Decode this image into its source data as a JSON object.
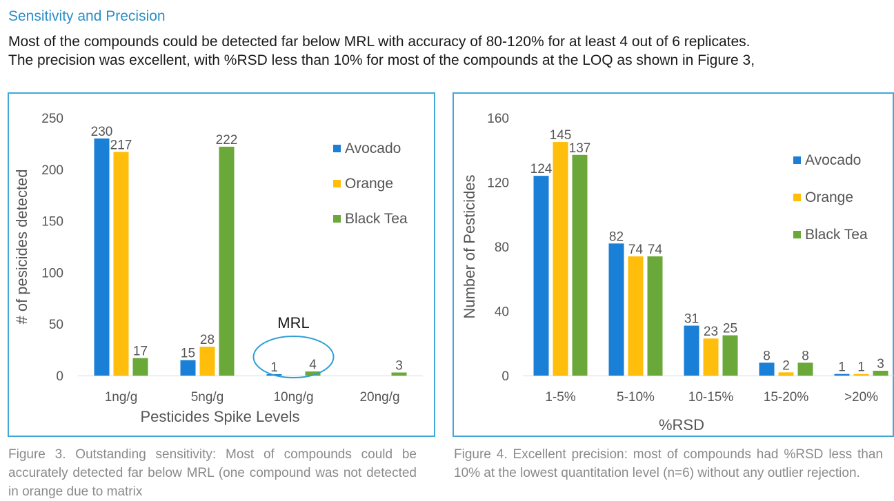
{
  "heading": "Sensitivity and Precision",
  "intro_lines": [
    "Most of the compounds could be detected far below MRL with accuracy of 80-120% for at least 4 out of 6 replicates.",
    "The precision was excellent, with %RSD less than 10% for most of the compounds at the LOQ as shown in Figure 3,"
  ],
  "colors": {
    "Avocado": "#1a7fd6",
    "Orange": "#ffbe0b",
    "Black Tea": "#6aa839",
    "accent": "#2a8fc6"
  },
  "chart_data": [
    {
      "type": "bar",
      "categories": [
        "1ng/g",
        "5ng/g",
        "10ng/g",
        "20ng/g"
      ],
      "series": [
        {
          "name": "Avocado",
          "values": [
            230,
            15,
            1,
            0
          ]
        },
        {
          "name": "Orange",
          "values": [
            217,
            28,
            0,
            0
          ]
        },
        {
          "name": "Black Tea",
          "values": [
            17,
            222,
            4,
            3
          ]
        }
      ],
      "data_labels": [
        [
          "230",
          "15",
          "1",
          ""
        ],
        [
          "217",
          "28",
          "",
          ""
        ],
        [
          "17",
          "222",
          "4",
          "3"
        ]
      ],
      "title": "",
      "xlabel": "Pesticides Spike Levels",
      "ylabel": "# of pesicides detected",
      "ylim": [
        0,
        250
      ],
      "yticks": [
        0,
        50,
        100,
        150,
        200,
        250
      ],
      "grid": false,
      "legend": "top-right",
      "annotation": {
        "text": "MRL",
        "category": "10ng/g",
        "shape": "ellipse"
      }
    },
    {
      "type": "bar",
      "categories": [
        "1-5%",
        "5-10%",
        "10-15%",
        "15-20%",
        ">20%"
      ],
      "series": [
        {
          "name": "Avocado",
          "values": [
            124,
            82,
            31,
            8,
            1
          ]
        },
        {
          "name": "Orange",
          "values": [
            145,
            74,
            23,
            2,
            1
          ]
        },
        {
          "name": "Black Tea",
          "values": [
            137,
            74,
            25,
            8,
            3
          ]
        }
      ],
      "data_labels": [
        [
          "124",
          "82",
          "31",
          "8",
          "1"
        ],
        [
          "145",
          "74",
          "23",
          "2",
          "1"
        ],
        [
          "137",
          "74",
          "25",
          "8",
          "3"
        ]
      ],
      "title": "",
      "xlabel": "%RSD",
      "ylabel": "Number of Pesticides",
      "ylim": [
        0,
        160
      ],
      "yticks": [
        0,
        40,
        80,
        120,
        160
      ],
      "grid": false,
      "legend": "right"
    }
  ],
  "captions": [
    "Figure 3. Outstanding sensitivity: Most of compounds could be accurately detected far below MRL (one compound was not detected in orange due to matrix",
    "Figure 4. Excellent precision: most of compounds had %RSD less than 10% at the lowest quantitation level (n=6) without any outlier rejection."
  ]
}
